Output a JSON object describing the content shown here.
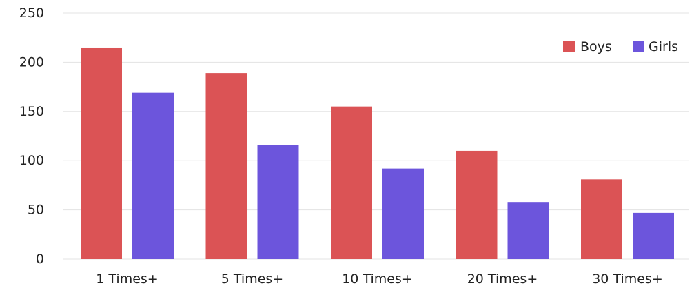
{
  "chart_data": {
    "type": "bar",
    "categories": [
      "1 Times+",
      "5 Times+",
      "10 Times+",
      "20 Times+",
      "30 Times+"
    ],
    "series": [
      {
        "name": "Boys",
        "color": "#db5355",
        "values": [
          215,
          189,
          155,
          110,
          81
        ]
      },
      {
        "name": "Girls",
        "color": "#6c55dc",
        "values": [
          169,
          116,
          92,
          58,
          47
        ]
      }
    ],
    "ylim": [
      0,
      250
    ],
    "yticks": [
      "0",
      "50",
      "100",
      "150",
      "200",
      "250"
    ],
    "ytick_values": [
      0,
      50,
      100,
      150,
      200,
      250
    ],
    "grid": true,
    "legend_position": "top-right"
  }
}
